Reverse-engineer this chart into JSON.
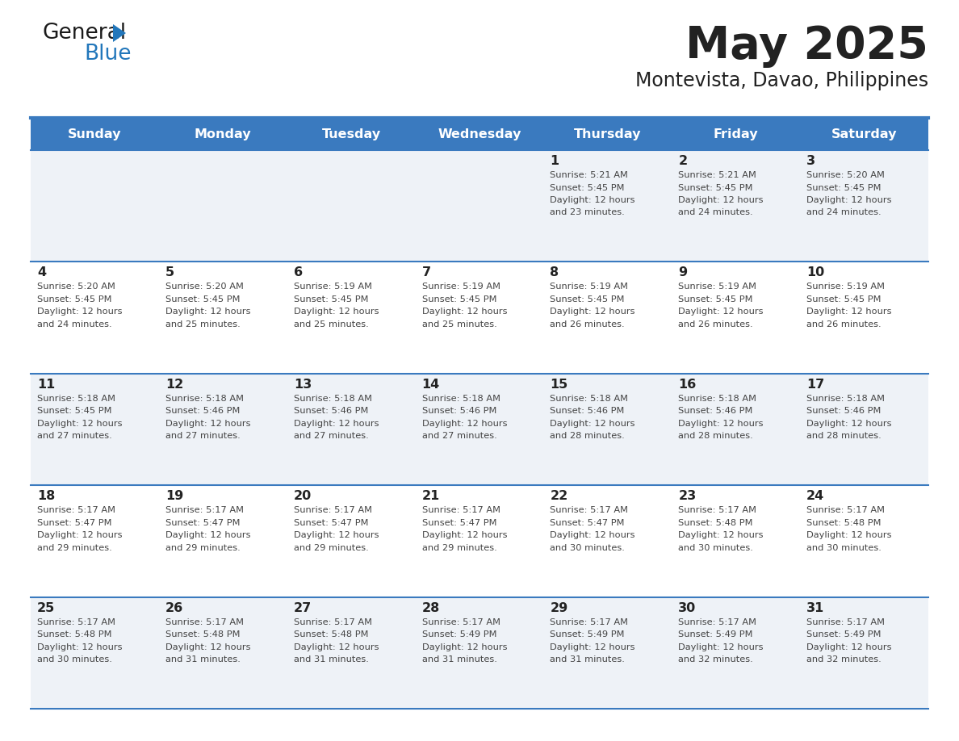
{
  "title": "May 2025",
  "subtitle": "Montevista, Davao, Philippines",
  "days_of_week": [
    "Sunday",
    "Monday",
    "Tuesday",
    "Wednesday",
    "Thursday",
    "Friday",
    "Saturday"
  ],
  "header_bg": "#3a7abf",
  "header_text_color": "#ffffff",
  "row_bg_even": "#eef2f7",
  "row_bg_odd": "#ffffff",
  "cell_text_color": "#444444",
  "day_number_color": "#222222",
  "separator_color": "#3a7abf",
  "calendar_data": [
    [
      {
        "day": "",
        "sunrise": "",
        "sunset": "",
        "daylight": ""
      },
      {
        "day": "",
        "sunrise": "",
        "sunset": "",
        "daylight": ""
      },
      {
        "day": "",
        "sunrise": "",
        "sunset": "",
        "daylight": ""
      },
      {
        "day": "",
        "sunrise": "",
        "sunset": "",
        "daylight": ""
      },
      {
        "day": "1",
        "sunrise": "5:21 AM",
        "sunset": "5:45 PM",
        "daylight": "12 hours and 23 minutes."
      },
      {
        "day": "2",
        "sunrise": "5:21 AM",
        "sunset": "5:45 PM",
        "daylight": "12 hours and 24 minutes."
      },
      {
        "day": "3",
        "sunrise": "5:20 AM",
        "sunset": "5:45 PM",
        "daylight": "12 hours and 24 minutes."
      }
    ],
    [
      {
        "day": "4",
        "sunrise": "5:20 AM",
        "sunset": "5:45 PM",
        "daylight": "12 hours and 24 minutes."
      },
      {
        "day": "5",
        "sunrise": "5:20 AM",
        "sunset": "5:45 PM",
        "daylight": "12 hours and 25 minutes."
      },
      {
        "day": "6",
        "sunrise": "5:19 AM",
        "sunset": "5:45 PM",
        "daylight": "12 hours and 25 minutes."
      },
      {
        "day": "7",
        "sunrise": "5:19 AM",
        "sunset": "5:45 PM",
        "daylight": "12 hours and 25 minutes."
      },
      {
        "day": "8",
        "sunrise": "5:19 AM",
        "sunset": "5:45 PM",
        "daylight": "12 hours and 26 minutes."
      },
      {
        "day": "9",
        "sunrise": "5:19 AM",
        "sunset": "5:45 PM",
        "daylight": "12 hours and 26 minutes."
      },
      {
        "day": "10",
        "sunrise": "5:19 AM",
        "sunset": "5:45 PM",
        "daylight": "12 hours and 26 minutes."
      }
    ],
    [
      {
        "day": "11",
        "sunrise": "5:18 AM",
        "sunset": "5:45 PM",
        "daylight": "12 hours and 27 minutes."
      },
      {
        "day": "12",
        "sunrise": "5:18 AM",
        "sunset": "5:46 PM",
        "daylight": "12 hours and 27 minutes."
      },
      {
        "day": "13",
        "sunrise": "5:18 AM",
        "sunset": "5:46 PM",
        "daylight": "12 hours and 27 minutes."
      },
      {
        "day": "14",
        "sunrise": "5:18 AM",
        "sunset": "5:46 PM",
        "daylight": "12 hours and 27 minutes."
      },
      {
        "day": "15",
        "sunrise": "5:18 AM",
        "sunset": "5:46 PM",
        "daylight": "12 hours and 28 minutes."
      },
      {
        "day": "16",
        "sunrise": "5:18 AM",
        "sunset": "5:46 PM",
        "daylight": "12 hours and 28 minutes."
      },
      {
        "day": "17",
        "sunrise": "5:18 AM",
        "sunset": "5:46 PM",
        "daylight": "12 hours and 28 minutes."
      }
    ],
    [
      {
        "day": "18",
        "sunrise": "5:17 AM",
        "sunset": "5:47 PM",
        "daylight": "12 hours and 29 minutes."
      },
      {
        "day": "19",
        "sunrise": "5:17 AM",
        "sunset": "5:47 PM",
        "daylight": "12 hours and 29 minutes."
      },
      {
        "day": "20",
        "sunrise": "5:17 AM",
        "sunset": "5:47 PM",
        "daylight": "12 hours and 29 minutes."
      },
      {
        "day": "21",
        "sunrise": "5:17 AM",
        "sunset": "5:47 PM",
        "daylight": "12 hours and 29 minutes."
      },
      {
        "day": "22",
        "sunrise": "5:17 AM",
        "sunset": "5:47 PM",
        "daylight": "12 hours and 30 minutes."
      },
      {
        "day": "23",
        "sunrise": "5:17 AM",
        "sunset": "5:48 PM",
        "daylight": "12 hours and 30 minutes."
      },
      {
        "day": "24",
        "sunrise": "5:17 AM",
        "sunset": "5:48 PM",
        "daylight": "12 hours and 30 minutes."
      }
    ],
    [
      {
        "day": "25",
        "sunrise": "5:17 AM",
        "sunset": "5:48 PM",
        "daylight": "12 hours and 30 minutes."
      },
      {
        "day": "26",
        "sunrise": "5:17 AM",
        "sunset": "5:48 PM",
        "daylight": "12 hours and 31 minutes."
      },
      {
        "day": "27",
        "sunrise": "5:17 AM",
        "sunset": "5:48 PM",
        "daylight": "12 hours and 31 minutes."
      },
      {
        "day": "28",
        "sunrise": "5:17 AM",
        "sunset": "5:49 PM",
        "daylight": "12 hours and 31 minutes."
      },
      {
        "day": "29",
        "sunrise": "5:17 AM",
        "sunset": "5:49 PM",
        "daylight": "12 hours and 31 minutes."
      },
      {
        "day": "30",
        "sunrise": "5:17 AM",
        "sunset": "5:49 PM",
        "daylight": "12 hours and 32 minutes."
      },
      {
        "day": "31",
        "sunrise": "5:17 AM",
        "sunset": "5:49 PM",
        "daylight": "12 hours and 32 minutes."
      }
    ]
  ],
  "logo_general_color": "#1a1a1a",
  "logo_blue_color": "#2277bb",
  "logo_triangle_color": "#2277bb",
  "fig_width": 11.88,
  "fig_height": 9.18,
  "dpi": 100
}
